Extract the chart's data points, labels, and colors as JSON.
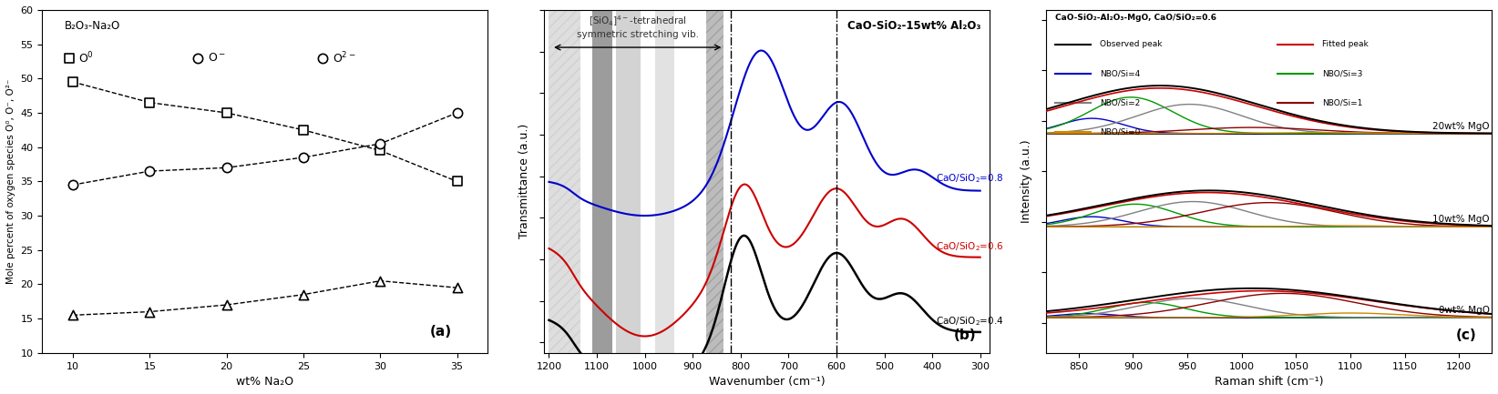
{
  "panel_a": {
    "title": "B₂O₃-Na₂O",
    "xlabel": "wt% Na₂O",
    "ylabel": "Mole percent of oxygen species O⁰, O⁻, O²⁻",
    "xlim": [
      8,
      37
    ],
    "ylim": [
      10,
      60
    ],
    "xticks": [
      10,
      15,
      20,
      25,
      30,
      35
    ],
    "yticks": [
      10,
      15,
      20,
      25,
      30,
      35,
      40,
      45,
      50,
      55,
      60
    ],
    "O0": {
      "x": [
        10,
        15,
        20,
        25,
        30,
        35
      ],
      "y": [
        49.5,
        46.5,
        45.0,
        42.5,
        39.5,
        35.0
      ]
    },
    "Om": {
      "x": [
        10,
        15,
        20,
        25,
        30,
        35
      ],
      "y": [
        34.5,
        36.5,
        37.0,
        38.5,
        40.5,
        45.0
      ]
    },
    "O2m": {
      "x": [
        10,
        15,
        20,
        25,
        30,
        35
      ],
      "y": [
        15.5,
        16.0,
        17.0,
        18.5,
        20.5,
        19.5
      ]
    },
    "label_a": "(a)"
  },
  "panel_b": {
    "title": "CaO-SiO₂-15wt% Al₂O₃",
    "xlabel": "Wavenumber (cm⁻¹)",
    "ylabel": "Transmittance (a.u.)",
    "label_b": "(b)"
  },
  "panel_c": {
    "title": "CaO-SiO₂-Al₂O₃-MgO, CaO/SiO₂=0.6",
    "xlabel": "Raman shift (cm⁻¹)",
    "ylabel": "Intensity (a.u.)",
    "label_c": "(c)"
  }
}
